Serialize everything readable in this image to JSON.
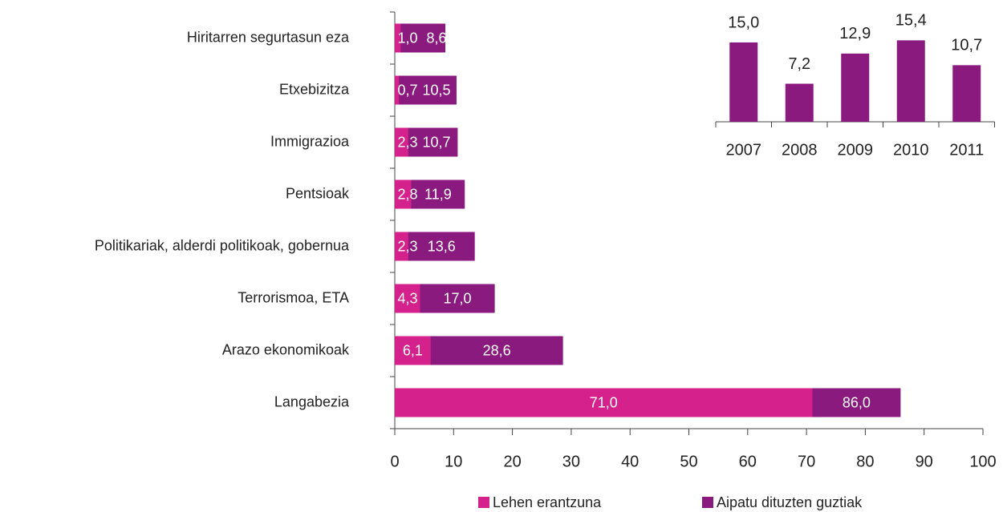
{
  "chart_data": [
    {
      "type": "hbar",
      "categories": [
        "Hiritarren segurtasun eza",
        "Etxebizitza",
        "Immigrazioa",
        "Pentsioak",
        "Politikariak, alderdi politikoak, gobernua",
        "Terrorismoa, ETA",
        "Arazo ekonomikoak",
        "Langabezia"
      ],
      "series": [
        {
          "name": "Lehen erantzuna",
          "color": "#d4218c",
          "values": [
            1.0,
            0.7,
            2.3,
            2.8,
            2.3,
            4.3,
            6.1,
            71.0
          ],
          "value_labels": [
            "1,0",
            "0,7",
            "2,3",
            "2,8",
            "2,3",
            "4,3",
            "6,1",
            "71,0"
          ]
        },
        {
          "name": "Aipatu dituzten guztiak",
          "color": "#8b1a7f",
          "values": [
            8.6,
            10.5,
            10.7,
            11.9,
            13.6,
            17.0,
            28.6,
            86.0
          ],
          "value_labels": [
            "8,6",
            "10,5",
            "10,7",
            "11,9",
            "13,6",
            "17,0",
            "28,6",
            "86,0"
          ]
        }
      ],
      "xlim": [
        0,
        100
      ],
      "xticks": [
        0,
        10,
        20,
        30,
        40,
        50,
        60,
        70,
        80,
        90,
        100
      ]
    },
    {
      "type": "bar",
      "categories": [
        "2007",
        "2008",
        "2009",
        "2010",
        "2011"
      ],
      "values": [
        15.0,
        7.2,
        12.9,
        15.4,
        10.7
      ],
      "value_labels": [
        "15,0",
        "7,2",
        "12,9",
        "15,4",
        "10,7"
      ],
      "color": "#8b1a7f"
    }
  ]
}
